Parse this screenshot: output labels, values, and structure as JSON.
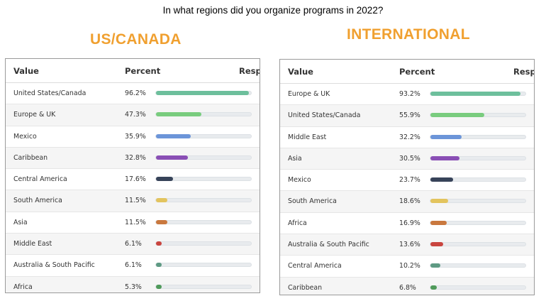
{
  "question": "In what regions did you organize programs in 2022?",
  "chart_data": [
    {
      "type": "bar",
      "title": "US/CANADA",
      "columns": [
        "Value",
        "Percent",
        "Resp"
      ],
      "rows": [
        {
          "label": "United States/Canada",
          "percent_text": "96.2%",
          "value": 96.2,
          "color": "#6dbf9c"
        },
        {
          "label": "Europe & UK",
          "percent_text": "47.3%",
          "value": 47.3,
          "color": "#79cc7e"
        },
        {
          "label": "Mexico",
          "percent_text": "35.9%",
          "value": 35.9,
          "color": "#6c95d9"
        },
        {
          "label": "Caribbean",
          "percent_text": "32.8%",
          "value": 32.8,
          "color": "#8a4fb5"
        },
        {
          "label": "Central America",
          "percent_text": "17.6%",
          "value": 17.6,
          "color": "#374359"
        },
        {
          "label": "South America",
          "percent_text": "11.5%",
          "value": 11.5,
          "color": "#e3c45e"
        },
        {
          "label": "Asia",
          "percent_text": "11.5%",
          "value": 11.5,
          "color": "#c9783e"
        },
        {
          "label": "Middle East",
          "percent_text": "6.1%",
          "value": 6.1,
          "color": "#c9453f"
        },
        {
          "label": "Australia & South Pacific",
          "percent_text": "6.1%",
          "value": 6.1,
          "color": "#5e9a83"
        },
        {
          "label": "Africa",
          "percent_text": "5.3%",
          "value": 5.3,
          "color": "#4f9a5a"
        }
      ]
    },
    {
      "type": "bar",
      "title": "INTERNATIONAL",
      "columns": [
        "Value",
        "Percent",
        "Respo"
      ],
      "rows": [
        {
          "label": "Europe & UK",
          "percent_text": "93.2%",
          "value": 93.2,
          "color": "#6dbf9c"
        },
        {
          "label": "United States/Canada",
          "percent_text": "55.9%",
          "value": 55.9,
          "color": "#79cc7e"
        },
        {
          "label": "Middle East",
          "percent_text": "32.2%",
          "value": 32.2,
          "color": "#6c95d9"
        },
        {
          "label": "Asia",
          "percent_text": "30.5%",
          "value": 30.5,
          "color": "#8a4fb5"
        },
        {
          "label": "Mexico",
          "percent_text": "23.7%",
          "value": 23.7,
          "color": "#374359"
        },
        {
          "label": "South America",
          "percent_text": "18.6%",
          "value": 18.6,
          "color": "#e3c45e"
        },
        {
          "label": "Africa",
          "percent_text": "16.9%",
          "value": 16.9,
          "color": "#c9783e"
        },
        {
          "label": "Australia & South Pacific",
          "percent_text": "13.6%",
          "value": 13.6,
          "color": "#c9453f"
        },
        {
          "label": "Central America",
          "percent_text": "10.2%",
          "value": 10.2,
          "color": "#5e9a83"
        },
        {
          "label": "Caribbean",
          "percent_text": "6.8%",
          "value": 6.8,
          "color": "#4f9a5a"
        }
      ]
    }
  ]
}
